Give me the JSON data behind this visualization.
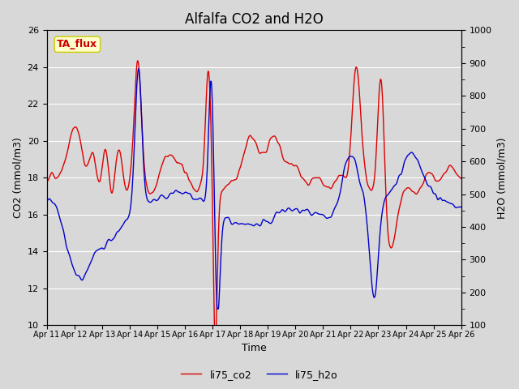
{
  "title": "Alfalfa CO2 and H2O",
  "xlabel": "Time",
  "ylabel_left": "CO2 (mmol/m3)",
  "ylabel_right": "H2O (mmol/m3)",
  "annotation_text": "TA_flux",
  "annotation_bg": "#ffffcc",
  "annotation_edge": "#cccc00",
  "annotation_text_color": "#cc0000",
  "x_tick_labels": [
    "Apr 11",
    "Apr 12",
    "Apr 13",
    "Apr 14",
    "Apr 15",
    "Apr 16",
    "Apr 17",
    "Apr 18",
    "Apr 19",
    "Apr 20",
    "Apr 21",
    "Apr 22",
    "Apr 23",
    "Apr 24",
    "Apr 25",
    "Apr 26"
  ],
  "ylim_left": [
    10,
    26
  ],
  "ylim_right": [
    100,
    1000
  ],
  "yticks_left": [
    10,
    12,
    14,
    16,
    18,
    20,
    22,
    24,
    26
  ],
  "yticks_right": [
    100,
    200,
    300,
    400,
    500,
    600,
    700,
    800,
    900,
    1000
  ],
  "co2_color": "#dd0000",
  "h2o_color": "#0000cc",
  "legend_labels": [
    "li75_co2",
    "li75_h2o"
  ],
  "bg_color": "#d8d8d8",
  "plot_bg_color": "#d8d8d8",
  "grid_color": "#ffffff",
  "linewidth": 1.0,
  "title_fontsize": 12,
  "axis_label_fontsize": 9,
  "tick_fontsize": 8,
  "legend_fontsize": 9
}
